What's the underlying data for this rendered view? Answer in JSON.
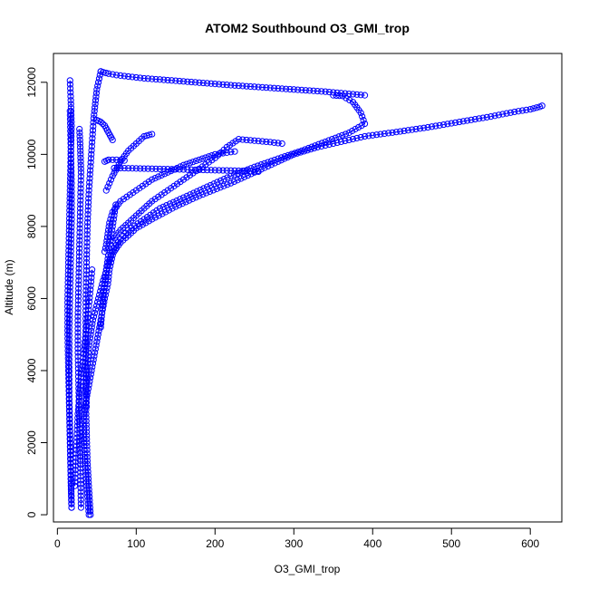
{
  "chart_data": {
    "type": "scatter",
    "title": "ATOM2 Southbound O3_GMI_trop",
    "xlabel": "O3_GMI_trop",
    "ylabel": "Altitude (m)",
    "xlim": [
      -5,
      640
    ],
    "ylim": [
      -200,
      12800
    ],
    "x_ticks": [
      0,
      100,
      200,
      300,
      400,
      500,
      600
    ],
    "y_ticks": [
      0,
      2000,
      4000,
      6000,
      8000,
      10000,
      12000
    ],
    "marker": "open-circle",
    "color": "#0000ff",
    "connected": true,
    "grid": false,
    "series": [
      {
        "x": [
          40,
          38,
          36,
          34,
          32,
          35,
          40,
          45,
          50,
          55,
          60,
          64,
          66,
          68,
          70,
          72,
          75,
          80,
          90,
          100,
          120,
          150,
          180,
          220,
          250,
          280,
          300,
          330,
          360,
          390,
          430,
          470,
          510,
          550,
          580,
          600,
          612,
          615
        ],
        "y": [
          0,
          600,
          1200,
          1800,
          2400,
          3000,
          3600,
          4200,
          4800,
          5400,
          6000,
          6400,
          6800,
          7000,
          7200,
          7300,
          7400,
          7550,
          7750,
          7950,
          8200,
          8550,
          8850,
          9200,
          9500,
          9800,
          10000,
          10200,
          10350,
          10500,
          10620,
          10750,
          10900,
          11050,
          11180,
          11250,
          11320,
          11350
        ]
      },
      {
        "x": [
          42,
          40,
          38,
          37,
          36,
          37,
          40,
          45,
          52,
          58,
          64,
          68,
          72,
          80,
          90,
          110,
          130,
          160,
          190,
          220,
          250,
          280,
          310,
          340,
          370,
          390,
          385,
          375,
          362,
          350
        ],
        "y": [
          0,
          700,
          1500,
          2300,
          3100,
          3900,
          4700,
          5400,
          6000,
          6500,
          6900,
          7200,
          7400,
          7650,
          7900,
          8200,
          8500,
          8800,
          9100,
          9400,
          9650,
          9880,
          10100,
          10350,
          10600,
          10850,
          11150,
          11450,
          11620,
          11640
        ]
      },
      {
        "x": [
          390,
          370,
          340,
          300,
          260,
          220,
          180,
          140,
          110,
          90,
          75,
          65,
          58,
          55
        ],
        "y": [
          11640,
          11680,
          11740,
          11800,
          11860,
          11920,
          11990,
          12060,
          12110,
          12160,
          12200,
          12240,
          12280,
          12300
        ]
      },
      {
        "x": [
          55,
          50,
          46,
          43,
          40,
          38,
          37,
          36,
          36,
          36,
          37
        ],
        "y": [
          12300,
          11800,
          11000,
          10000,
          9000,
          8000,
          7000,
          6000,
          5000,
          4000,
          3000
        ]
      },
      {
        "x": [
          18,
          17,
          16,
          15,
          15,
          15,
          16,
          17,
          18,
          18,
          17,
          16
        ],
        "y": [
          200,
          1200,
          2200,
          3200,
          4200,
          5200,
          6200,
          7200,
          8200,
          9200,
          10200,
          11200
        ]
      },
      {
        "x": [
          16,
          17,
          18,
          17,
          16,
          15,
          14,
          13,
          13,
          14,
          15,
          16,
          17,
          18
        ],
        "y": [
          12050,
          11500,
          10800,
          10000,
          9000,
          8000,
          7000,
          6000,
          5000,
          4000,
          3000,
          2000,
          1000,
          200
        ]
      },
      {
        "x": [
          28,
          29,
          30,
          29,
          28,
          27,
          26,
          26,
          27,
          28,
          29,
          30
        ],
        "y": [
          10700,
          10200,
          9500,
          8500,
          7500,
          6500,
          5500,
          4500,
          3500,
          2500,
          1500,
          200
        ]
      },
      {
        "x": [
          60,
          62,
          64,
          66,
          70,
          80,
          100,
          120,
          140,
          160,
          180,
          200,
          215,
          225
        ],
        "y": [
          7300,
          7500,
          7800,
          8100,
          8400,
          8700,
          9000,
          9300,
          9500,
          9700,
          9850,
          10000,
          10050,
          10080
        ]
      },
      {
        "x": [
          72,
          80,
          100,
          120,
          140,
          160,
          180,
          200,
          220,
          240,
          255
        ],
        "y": [
          9620,
          9620,
          9610,
          9600,
          9590,
          9580,
          9570,
          9560,
          9550,
          9540,
          9520
        ]
      },
      {
        "x": [
          70,
          80,
          100,
          120,
          140,
          160,
          180,
          200,
          215,
          230,
          250,
          270,
          285
        ],
        "y": [
          7600,
          7900,
          8300,
          8700,
          9000,
          9300,
          9600,
          9900,
          10200,
          10420,
          10380,
          10340,
          10300
        ]
      },
      {
        "x": [
          62,
          70,
          80,
          90,
          100,
          110,
          120
        ],
        "y": [
          9000,
          9400,
          9800,
          10100,
          10300,
          10500,
          10560
        ]
      },
      {
        "x": [
          50,
          55,
          60,
          65,
          70
        ],
        "y": [
          10950,
          10900,
          10800,
          10600,
          10400
        ]
      },
      {
        "x": [
          60,
          65,
          70,
          75,
          80,
          85
        ],
        "y": [
          9800,
          9850,
          9850,
          9850,
          9840,
          9830
        ]
      },
      {
        "x": [
          55,
          58,
          62,
          66,
          70,
          74
        ],
        "y": [
          5200,
          6000,
          6800,
          7400,
          8000,
          8600
        ]
      },
      {
        "x": [
          22,
          24,
          26,
          30,
          35,
          40,
          44
        ],
        "y": [
          800,
          1800,
          2800,
          3800,
          4800,
          5800,
          6800
        ]
      }
    ]
  }
}
